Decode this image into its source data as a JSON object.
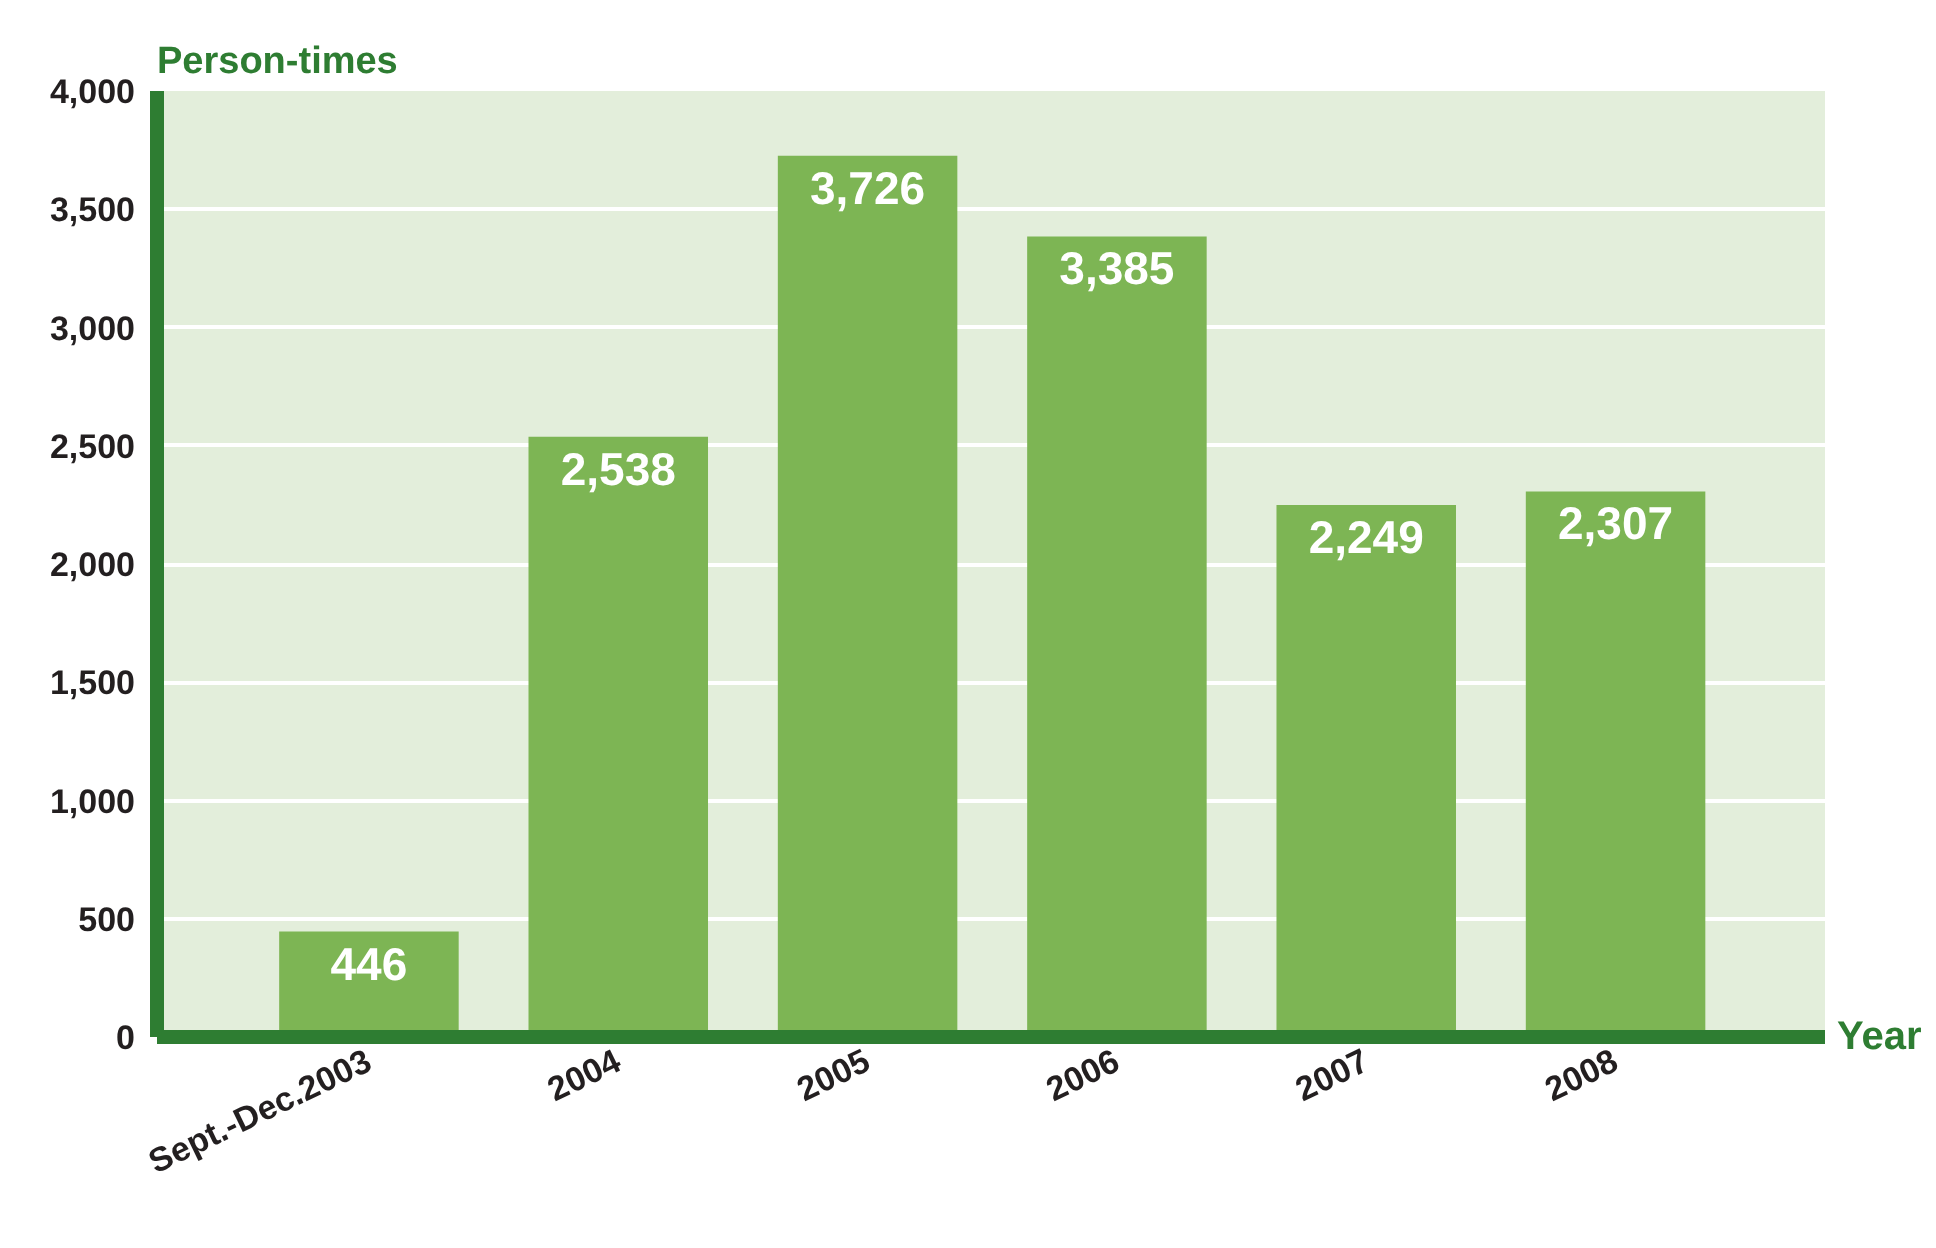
{
  "chart_data": {
    "type": "bar",
    "xlabel": "Year",
    "ylabel": "Person-times",
    "categories": [
      "Sept.-Dec.2003",
      "2004",
      "2005",
      "2006",
      "2007",
      "2008"
    ],
    "values": [
      446,
      2538,
      3726,
      3385,
      2249,
      2307
    ],
    "value_labels": [
      "446",
      "2,538",
      "3,726",
      "3,385",
      "2,249",
      "2,307"
    ],
    "color": "#7db554",
    "ylim": [
      0,
      4000
    ],
    "yticks": [
      0,
      500,
      {
        "value": 1000,
        "label": "1,000"
      },
      {
        "value": 1500,
        "label": "1,500"
      },
      {
        "value": 2000,
        "label": "2,000"
      },
      {
        "value": 2500,
        "label": "2,500"
      },
      {
        "value": 3000,
        "label": "3,000"
      },
      {
        "value": 3500,
        "label": "3,500"
      },
      {
        "value": 4000,
        "label": "4,000"
      }
    ],
    "grid": "y"
  }
}
